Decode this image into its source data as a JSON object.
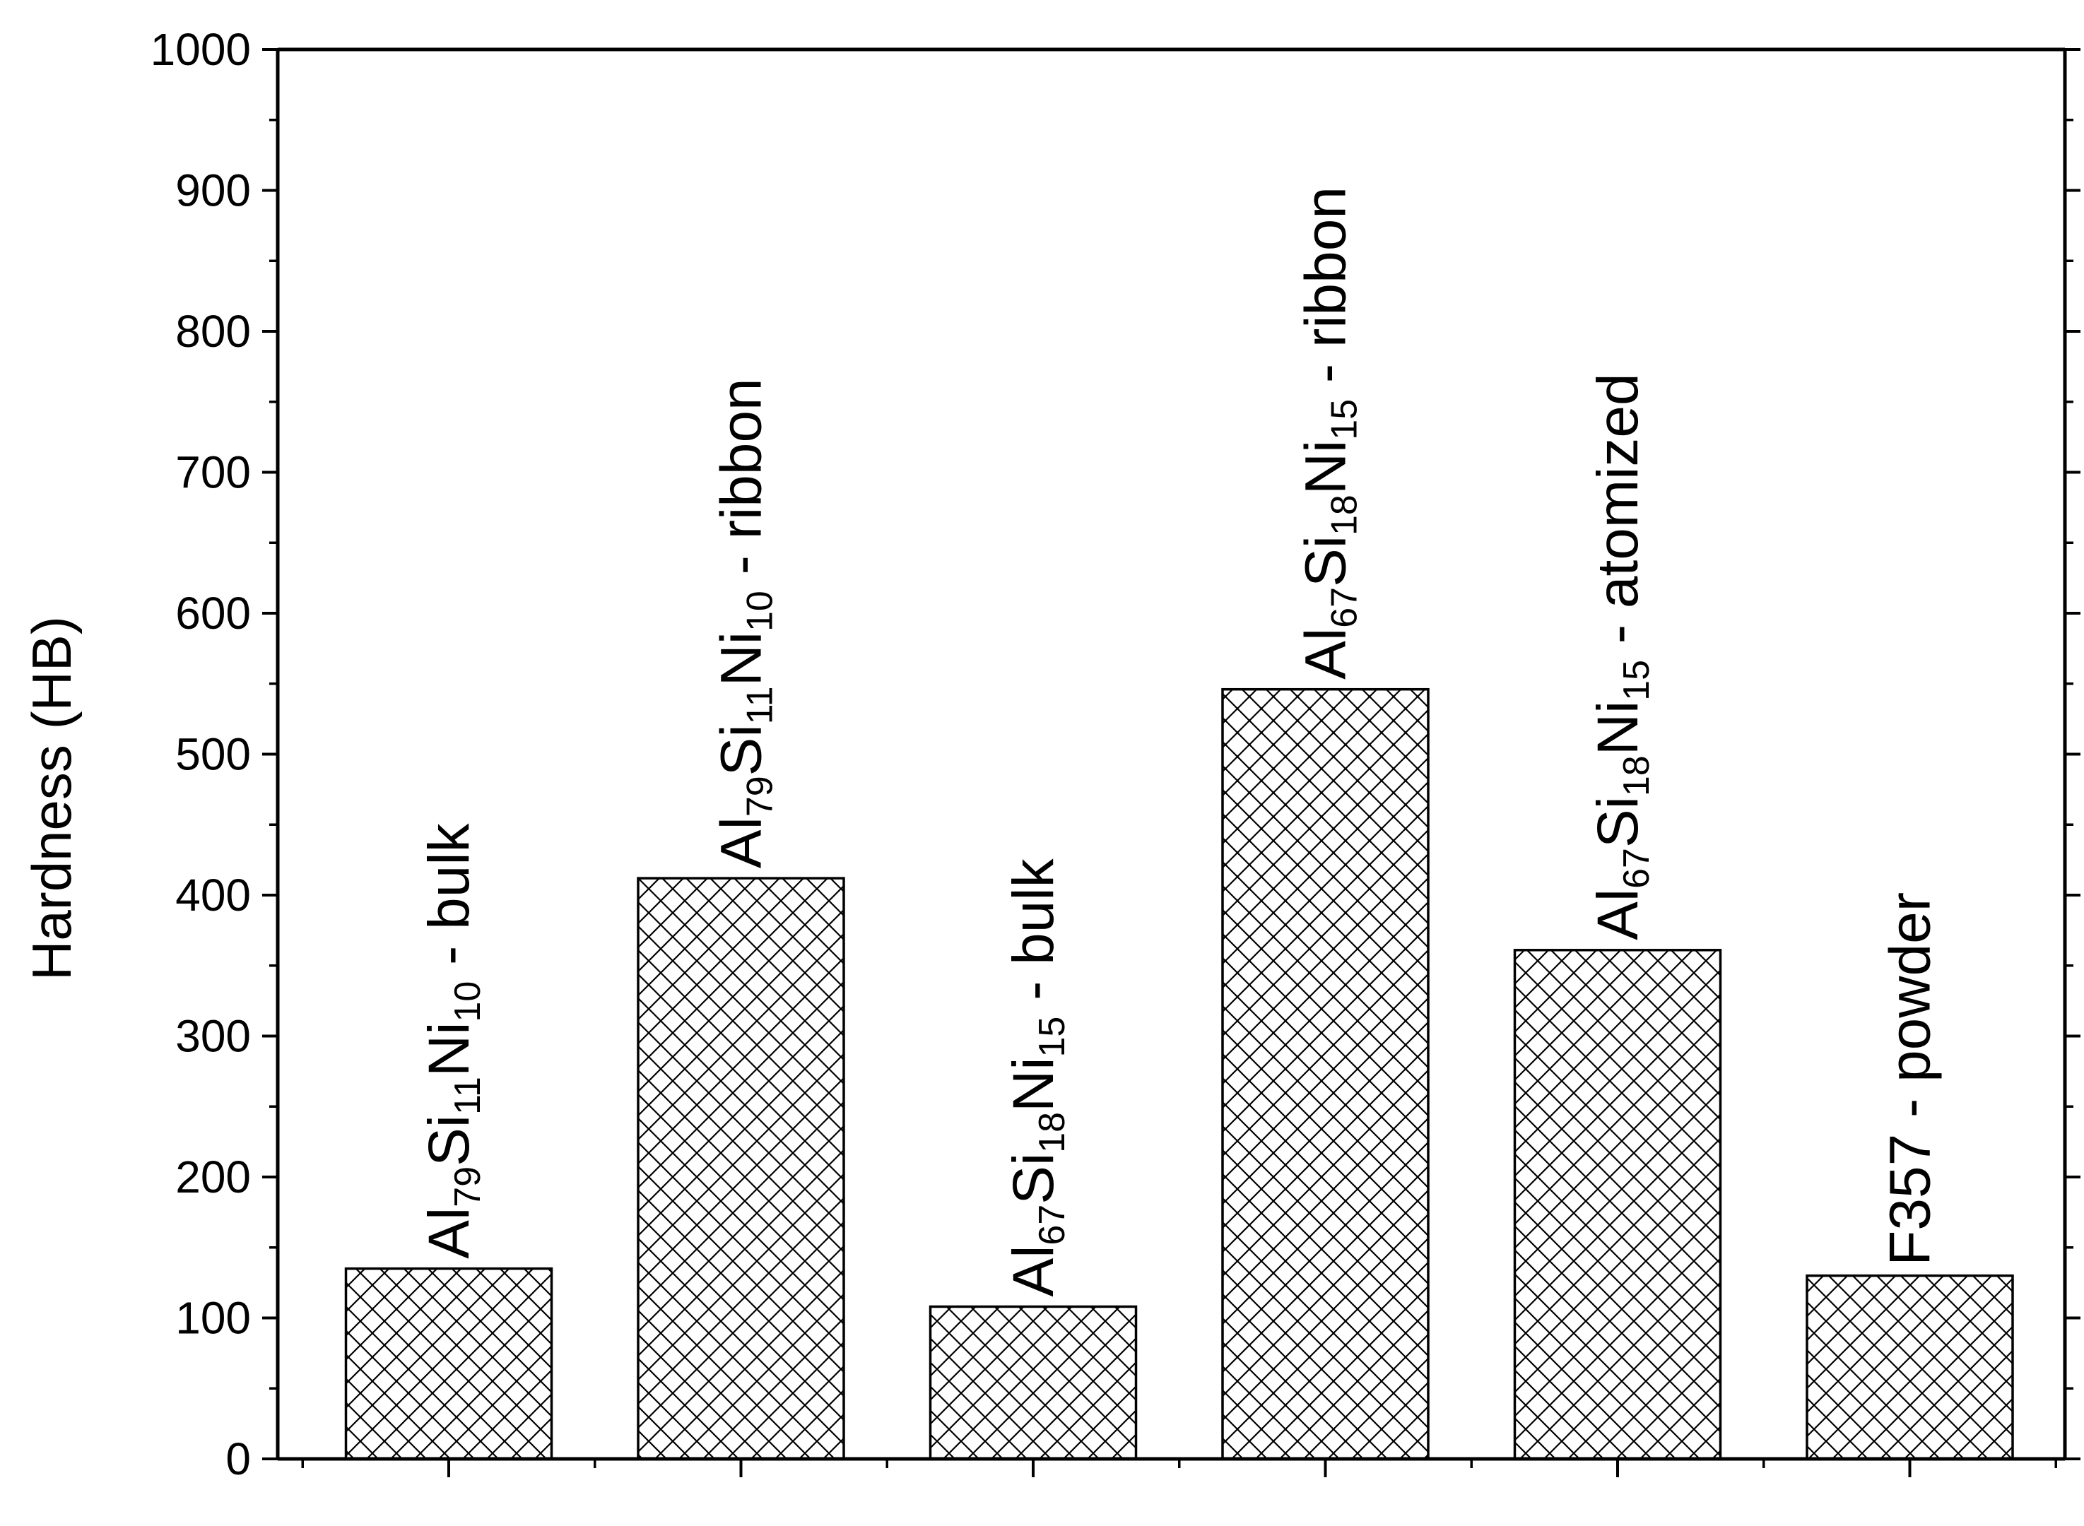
{
  "chart_data": {
    "type": "bar",
    "title": "",
    "xlabel": "",
    "ylabel": "Hardness (HB)",
    "ylim": [
      0,
      1000
    ],
    "yticks": [
      0,
      100,
      200,
      300,
      400,
      500,
      600,
      700,
      800,
      900,
      1000
    ],
    "grid": false,
    "legend": "none",
    "bar_fill": "crosshatch",
    "colors": {
      "axis": "#000000",
      "bar_edge": "#000000",
      "hatch": "#000000",
      "background": "#ffffff"
    },
    "categories": [
      "Al79Si11Ni10 - bulk",
      "Al79Si11Ni10 - ribbon",
      "Al67Si18Ni15 - bulk",
      "Al67Si18Ni15 - ribbon",
      "Al67Si18Ni15 - atomized",
      "F357 - powder"
    ],
    "values": [
      135,
      412,
      108,
      546,
      361,
      130
    ],
    "bar_labels": [
      [
        {
          "t": "Al"
        },
        {
          "t": "79",
          "sub": true
        },
        {
          "t": "Si"
        },
        {
          "t": "11",
          "sub": true
        },
        {
          "t": "Ni"
        },
        {
          "t": "10",
          "sub": true
        },
        {
          "t": " - bulk"
        }
      ],
      [
        {
          "t": "Al"
        },
        {
          "t": "79",
          "sub": true
        },
        {
          "t": "Si"
        },
        {
          "t": "11",
          "sub": true
        },
        {
          "t": "Ni"
        },
        {
          "t": "10",
          "sub": true
        },
        {
          "t": " - ribbon"
        }
      ],
      [
        {
          "t": "Al"
        },
        {
          "t": "67",
          "sub": true
        },
        {
          "t": "Si"
        },
        {
          "t": "18",
          "sub": true
        },
        {
          "t": "Ni"
        },
        {
          "t": "15",
          "sub": true
        },
        {
          "t": " - bulk"
        }
      ],
      [
        {
          "t": "Al"
        },
        {
          "t": "67",
          "sub": true
        },
        {
          "t": "Si"
        },
        {
          "t": "18",
          "sub": true
        },
        {
          "t": "Ni"
        },
        {
          "t": "15",
          "sub": true
        },
        {
          "t": " - ribbon"
        }
      ],
      [
        {
          "t": "Al"
        },
        {
          "t": "67",
          "sub": true
        },
        {
          "t": "Si"
        },
        {
          "t": "18",
          "sub": true
        },
        {
          "t": "Ni"
        },
        {
          "t": "15",
          "sub": true
        },
        {
          "t": " - atomized"
        }
      ],
      [
        {
          "t": "F357 - powder"
        }
      ]
    ]
  }
}
